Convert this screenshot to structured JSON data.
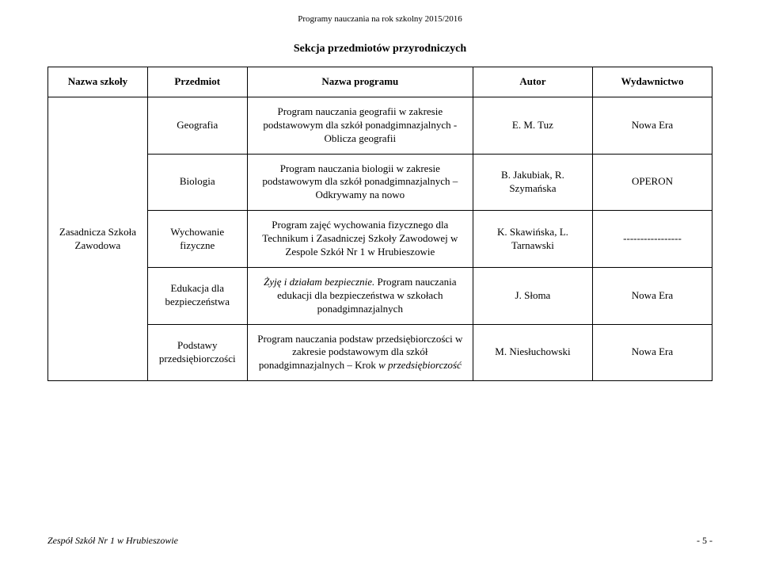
{
  "header": "Programy nauczania na rok szkolny 2015/2016",
  "section_title": "Sekcja przedmiotów przyrodniczych",
  "columns": {
    "school": "Nazwa szkoły",
    "subject": "Przedmiot",
    "program": "Nazwa programu",
    "author": "Autor",
    "publisher": "Wydawnictwo"
  },
  "school_cell": "Zasadnicza Szkoła Zawodowa",
  "rows": [
    {
      "subject": "Geografia",
      "program": "Program nauczania geografii w zakresie podstawowym dla szkół ponadgimnazjalnych - Oblicza geografii",
      "author": "E. M. Tuz",
      "publisher": "Nowa Era"
    },
    {
      "subject": "Biologia",
      "program": "Program nauczania biologii w zakresie podstawowym dla szkół ponadgimnazjalnych – Odkrywamy na nowo",
      "author": "B. Jakubiak, R. Szymańska",
      "publisher": "OPERON"
    },
    {
      "subject": "Wychowanie fizyczne",
      "program": "Program zajęć wychowania fizycznego dla Technikum i Zasadniczej Szkoły Zawodowej w Zespole Szkół Nr 1 w Hrubieszowie",
      "author": "K. Skawińska, L. Tarnawski",
      "publisher": "-----------------"
    },
    {
      "subject": "Edukacja dla bezpieczeństwa",
      "program_prefix_italic": "Żyję i działam bezpiecznie.",
      "program_suffix": " Program nauczania edukacji dla bezpieczeństwa w szkołach ponadgimnazjalnych",
      "author": "J. Słoma",
      "publisher": "Nowa Era"
    },
    {
      "subject": "Podstawy przedsiębiorczości",
      "program_prefix": "Program nauczania podstaw przedsiębiorczości w zakresie podstawowym dla szkół ponadgimnazjalnych – Krok",
      "program_suffix_italic": " w przedsiębiorczość",
      "author": "M. Niesłuchowski",
      "publisher": "Nowa Era"
    }
  ],
  "footer": {
    "left": "Zespół Szkół Nr 1 w Hrubieszowie",
    "right": "- 5 -"
  }
}
